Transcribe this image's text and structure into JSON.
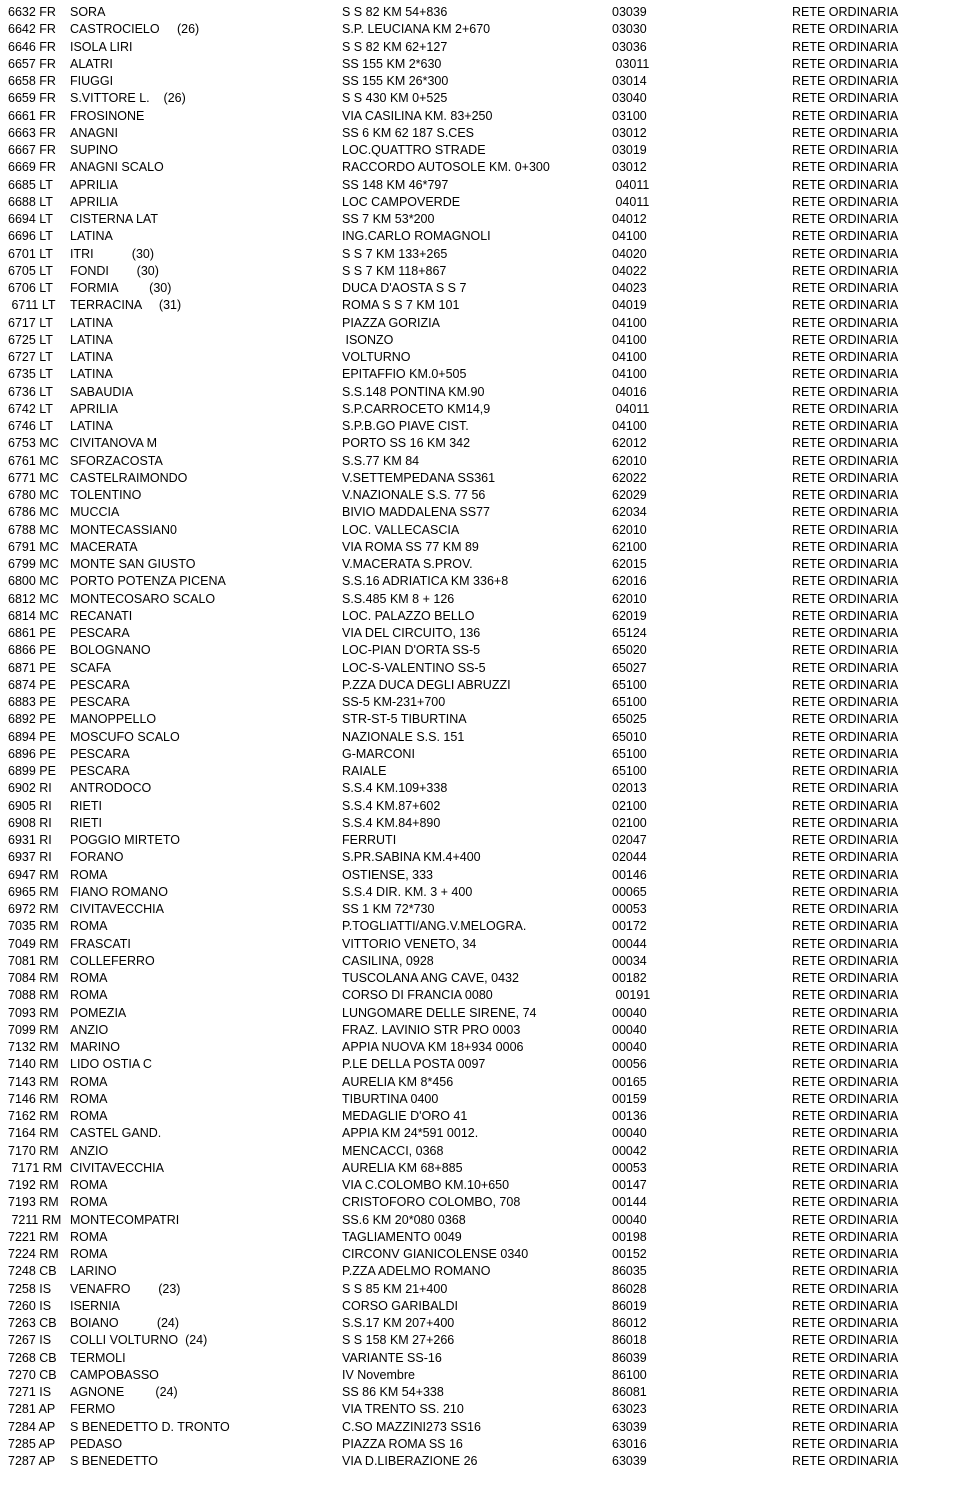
{
  "rows": [
    {
      "code": "6632 FR",
      "city": "SORA",
      "address": "S S 82 KM 54+836",
      "cap": "03039",
      "network": "RETE ORDINARIA"
    },
    {
      "code": "6642 FR",
      "city": "CASTROCIELO     (26)",
      "address": "S.P. LEUCIANA KM 2+670",
      "cap": "03030",
      "network": "RETE ORDINARIA"
    },
    {
      "code": "6646 FR",
      "city": "ISOLA LIRI",
      "address": "S S 82 KM 62+127",
      "cap": "03036",
      "network": "RETE ORDINARIA"
    },
    {
      "code": "6657 FR",
      "city": "ALATRI",
      "address": "SS 155 KM 2*630",
      "cap": " 03011",
      "network": "RETE ORDINARIA"
    },
    {
      "code": "6658 FR",
      "city": "FIUGGI",
      "address": "SS 155 KM 26*300",
      "cap": "03014",
      "network": "RETE ORDINARIA"
    },
    {
      "code": "6659 FR",
      "city": "S.VITTORE L.    (26)",
      "address": "S S 430 KM 0+525",
      "cap": "03040",
      "network": "RETE ORDINARIA"
    },
    {
      "code": "6661 FR",
      "city": "FROSINONE",
      "address": "VIA CASILINA KM. 83+250",
      "cap": "03100",
      "network": "RETE ORDINARIA"
    },
    {
      "code": "6663 FR",
      "city": "ANAGNI",
      "address": "SS 6 KM 62 187 S.CES",
      "cap": "03012",
      "network": "RETE ORDINARIA"
    },
    {
      "code": "6667 FR",
      "city": "SUPINO",
      "address": "LOC.QUATTRO STRADE",
      "cap": "03019",
      "network": "RETE ORDINARIA"
    },
    {
      "code": "6669 FR",
      "city": "ANAGNI SCALO",
      "address": "RACCORDO AUTOSOLE KM. 0+300",
      "cap": "03012",
      "network": "RETE ORDINARIA"
    },
    {
      "code": "6685 LT",
      "city": "APRILIA",
      "address": "SS 148 KM 46*797",
      "cap": " 04011",
      "network": "RETE ORDINARIA"
    },
    {
      "code": "6688 LT",
      "city": "APRILIA",
      "address": "LOC CAMPOVERDE",
      "cap": " 04011",
      "network": "RETE ORDINARIA"
    },
    {
      "code": "6694 LT",
      "city": "CISTERNA LAT",
      "address": "SS 7 KM 53*200",
      "cap": "04012",
      "network": "RETE ORDINARIA"
    },
    {
      "code": "6696 LT",
      "city": "LATINA",
      "address": "ING.CARLO ROMAGNOLI",
      "cap": "04100",
      "network": "RETE ORDINARIA"
    },
    {
      "code": "6701 LT",
      "city": "ITRI           (30)",
      "address": "S S 7 KM 133+265",
      "cap": "04020",
      "network": "RETE ORDINARIA"
    },
    {
      "code": "6705 LT",
      "city": "FONDI        (30)",
      "address": "S S 7 KM 118+867",
      "cap": "04022",
      "network": "RETE ORDINARIA"
    },
    {
      "code": "6706 LT",
      "city": "FORMIA         (30)",
      "address": "DUCA D'AOSTA S S 7",
      "cap": "04023",
      "network": "RETE ORDINARIA"
    },
    {
      "code": " 6711 LT",
      "city": "TERRACINA     (31)",
      "address": "ROMA S S 7 KM 101",
      "cap": "04019",
      "network": "RETE ORDINARIA"
    },
    {
      "code": "6717 LT",
      "city": "LATINA",
      "address": "PIAZZA GORIZIA",
      "cap": "04100",
      "network": "RETE ORDINARIA"
    },
    {
      "code": "6725 LT",
      "city": "LATINA",
      "address": " ISONZO",
      "cap": "04100",
      "network": "RETE ORDINARIA"
    },
    {
      "code": "6727 LT",
      "city": "LATINA",
      "address": "VOLTURNO",
      "cap": "04100",
      "network": "RETE ORDINARIA"
    },
    {
      "code": "6735 LT",
      "city": "LATINA",
      "address": "EPITAFFIO KM.0+505",
      "cap": "04100",
      "network": "RETE ORDINARIA"
    },
    {
      "code": "6736 LT",
      "city": "SABAUDIA",
      "address": "S.S.148 PONTINA KM.90",
      "cap": "04016",
      "network": "RETE ORDINARIA"
    },
    {
      "code": "6742 LT",
      "city": "APRILIA",
      "address": "S.P.CARROCETO KM14,9",
      "cap": " 04011",
      "network": "RETE ORDINARIA"
    },
    {
      "code": "6746 LT",
      "city": "LATINA",
      "address": "S.P.B.GO PIAVE CIST.",
      "cap": "04100",
      "network": "RETE ORDINARIA"
    },
    {
      "code": "6753 MC",
      "city": "CIVITANOVA M",
      "address": "PORTO SS 16 KM 342",
      "cap": "62012",
      "network": "RETE ORDINARIA"
    },
    {
      "code": "6761 MC",
      "city": "SFORZACOSTA",
      "address": "S.S.77 KM 84",
      "cap": "62010",
      "network": "RETE ORDINARIA"
    },
    {
      "code": "6771 MC",
      "city": "CASTELRAIMONDO",
      "address": "V.SETTEMPEDANA SS361",
      "cap": "62022",
      "network": "RETE ORDINARIA"
    },
    {
      "code": "6780 MC",
      "city": "TOLENTINO",
      "address": "V.NAZIONALE S.S. 77 56",
      "cap": "62029",
      "network": "RETE ORDINARIA"
    },
    {
      "code": "6786 MC",
      "city": "MUCCIA",
      "address": "BIVIO MADDALENA SS77",
      "cap": "62034",
      "network": "RETE ORDINARIA"
    },
    {
      "code": "6788 MC",
      "city": "MONTECASSIAN0",
      "address": "LOC. VALLECASCIA",
      "cap": "62010",
      "network": "RETE ORDINARIA"
    },
    {
      "code": "6791 MC",
      "city": "MACERATA",
      "address": "VIA ROMA SS 77 KM 89",
      "cap": "62100",
      "network": "RETE ORDINARIA"
    },
    {
      "code": "6799 MC",
      "city": "MONTE SAN GIUSTO",
      "address": "V.MACERATA S.PROV.",
      "cap": "62015",
      "network": "RETE ORDINARIA"
    },
    {
      "code": "6800 MC",
      "city": "PORTO POTENZA PICENA",
      "address": "S.S.16 ADRIATICA KM 336+8",
      "cap": "62016",
      "network": "RETE ORDINARIA"
    },
    {
      "code": "6812 MC",
      "city": "MONTECOSARO SCALO",
      "address": "S.S.485 KM 8 + 126",
      "cap": "62010",
      "network": "RETE ORDINARIA"
    },
    {
      "code": "6814 MC",
      "city": "RECANATI",
      "address": "LOC. PALAZZO BELLO",
      "cap": "62019",
      "network": "RETE ORDINARIA"
    },
    {
      "code": "6861 PE",
      "city": "PESCARA",
      "address": "VIA DEL CIRCUITO, 136",
      "cap": "65124",
      "network": "RETE ORDINARIA"
    },
    {
      "code": "6866 PE",
      "city": "BOLOGNANO",
      "address": "LOC-PIAN D'ORTA SS-5",
      "cap": "65020",
      "network": "RETE ORDINARIA"
    },
    {
      "code": "6871 PE",
      "city": "SCAFA",
      "address": "LOC-S-VALENTINO SS-5",
      "cap": "65027",
      "network": "RETE ORDINARIA"
    },
    {
      "code": "6874 PE",
      "city": "PESCARA",
      "address": "P.ZZA DUCA DEGLI ABRUZZI",
      "cap": "65100",
      "network": "RETE ORDINARIA"
    },
    {
      "code": "6883 PE",
      "city": "PESCARA",
      "address": "SS-5 KM-231+700",
      "cap": "65100",
      "network": "RETE ORDINARIA"
    },
    {
      "code": "6892 PE",
      "city": "MANOPPELLO",
      "address": "STR-ST-5 TIBURTINA",
      "cap": "65025",
      "network": "RETE ORDINARIA"
    },
    {
      "code": "6894 PE",
      "city": "MOSCUFO SCALO",
      "address": "NAZIONALE S.S. 151",
      "cap": "65010",
      "network": "RETE ORDINARIA"
    },
    {
      "code": "6896 PE",
      "city": "PESCARA",
      "address": "G-MARCONI",
      "cap": "65100",
      "network": "RETE ORDINARIA"
    },
    {
      "code": "6899 PE",
      "city": "PESCARA",
      "address": "RAIALE",
      "cap": "65100",
      "network": "RETE ORDINARIA"
    },
    {
      "code": "6902 RI",
      "city": "ANTRODOCO",
      "address": "S.S.4 KM.109+338",
      "cap": "02013",
      "network": "RETE ORDINARIA"
    },
    {
      "code": "6905 RI",
      "city": "RIETI",
      "address": "S.S.4 KM.87+602",
      "cap": "02100",
      "network": "RETE ORDINARIA"
    },
    {
      "code": "6908 RI",
      "city": "RIETI",
      "address": "S.S.4 KM.84+890",
      "cap": "02100",
      "network": "RETE ORDINARIA"
    },
    {
      "code": "6931 RI",
      "city": "POGGIO MIRTETO",
      "address": "FERRUTI",
      "cap": "02047",
      "network": "RETE ORDINARIA"
    },
    {
      "code": "6937 RI",
      "city": "FORANO",
      "address": "S.PR.SABINA KM.4+400",
      "cap": "02044",
      "network": "RETE ORDINARIA"
    },
    {
      "code": "6947 RM",
      "city": "ROMA",
      "address": "OSTIENSE, 333",
      "cap": "00146",
      "network": "RETE ORDINARIA"
    },
    {
      "code": "6965 RM",
      "city": "FIANO ROMANO",
      "address": "S.S.4 DIR. KM. 3 + 400",
      "cap": "00065",
      "network": "RETE ORDINARIA"
    },
    {
      "code": "6972 RM",
      "city": "CIVITAVECCHIA",
      "address": "SS 1 KM 72*730",
      "cap": "00053",
      "network": "RETE ORDINARIA"
    },
    {
      "code": "7035 RM",
      "city": "ROMA",
      "address": "P.TOGLIATTI/ANG.V.MELOGRA.",
      "cap": "00172",
      "network": "RETE ORDINARIA"
    },
    {
      "code": "7049 RM",
      "city": "FRASCATI",
      "address": "VITTORIO VENETO, 34",
      "cap": "00044",
      "network": "RETE ORDINARIA"
    },
    {
      "code": "7081 RM",
      "city": "COLLEFERRO",
      "address": "CASILINA, 0928",
      "cap": "00034",
      "network": "RETE ORDINARIA"
    },
    {
      "code": "7084 RM",
      "city": "ROMA",
      "address": "TUSCOLANA ANG CAVE, 0432",
      "cap": "00182",
      "network": "RETE ORDINARIA"
    },
    {
      "code": "7088 RM",
      "city": "ROMA",
      "address": "CORSO DI FRANCIA 0080",
      "cap": " 00191",
      "network": "RETE ORDINARIA"
    },
    {
      "code": "7093 RM",
      "city": "POMEZIA",
      "address": "LUNGOMARE DELLE SIRENE, 74",
      "cap": "00040",
      "network": "RETE ORDINARIA"
    },
    {
      "code": "7099 RM",
      "city": "ANZIO",
      "address": "FRAZ. LAVINIO STR PRO 0003",
      "cap": "00040",
      "network": "RETE ORDINARIA"
    },
    {
      "code": "7132 RM",
      "city": "MARINO",
      "address": "APPIA NUOVA KM 18+934 0006",
      "cap": "00040",
      "network": "RETE ORDINARIA"
    },
    {
      "code": "7140 RM",
      "city": "LIDO OSTIA C",
      "address": "P.LE DELLA POSTA 0097",
      "cap": "00056",
      "network": "RETE ORDINARIA"
    },
    {
      "code": "7143 RM",
      "city": "ROMA",
      "address": "AURELIA KM 8*456",
      "cap": "00165",
      "network": "RETE ORDINARIA"
    },
    {
      "code": "7146 RM",
      "city": "ROMA",
      "address": "TIBURTINA 0400",
      "cap": "00159",
      "network": "RETE ORDINARIA"
    },
    {
      "code": "7162 RM",
      "city": "ROMA",
      "address": "MEDAGLIE D'ORO 41",
      "cap": "00136",
      "network": "RETE ORDINARIA"
    },
    {
      "code": "7164 RM",
      "city": "CASTEL GAND.",
      "address": "APPIA KM 24*591 0012.",
      "cap": "00040",
      "network": "RETE ORDINARIA"
    },
    {
      "code": "7170 RM",
      "city": "ANZIO",
      "address": "MENCACCI, 0368",
      "cap": "00042",
      "network": "RETE ORDINARIA"
    },
    {
      "code": " 7171 RM",
      "city": "CIVITAVECCHIA",
      "address": "AURELIA KM 68+885",
      "cap": "00053",
      "network": "RETE ORDINARIA"
    },
    {
      "code": "7192 RM",
      "city": "ROMA",
      "address": "VIA C.COLOMBO KM.10+650",
      "cap": "00147",
      "network": "RETE ORDINARIA"
    },
    {
      "code": "7193 RM",
      "city": "ROMA",
      "address": "CRISTOFORO COLOMBO, 708",
      "cap": "00144",
      "network": "RETE ORDINARIA"
    },
    {
      "code": " 7211 RM",
      "city": "MONTECOMPATRI",
      "address": "SS.6 KM 20*080 0368",
      "cap": "00040",
      "network": "RETE ORDINARIA"
    },
    {
      "code": "7221 RM",
      "city": "ROMA",
      "address": "TAGLIAMENTO 0049",
      "cap": "00198",
      "network": "RETE ORDINARIA"
    },
    {
      "code": "7224 RM",
      "city": "ROMA",
      "address": "CIRCONV GIANICOLENSE 0340",
      "cap": "00152",
      "network": "RETE ORDINARIA"
    },
    {
      "code": "7248 CB",
      "city": "LARINO",
      "address": "P.ZZA ADELMO ROMANO",
      "cap": "86035",
      "network": "RETE ORDINARIA"
    },
    {
      "code": "7258 IS",
      "city": "VENAFRO        (23)",
      "address": "S S 85 KM 21+400",
      "cap": "86028",
      "network": "RETE ORDINARIA"
    },
    {
      "code": "7260 IS",
      "city": "ISERNIA",
      "address": "CORSO GARIBALDI",
      "cap": "86019",
      "network": "RETE ORDINARIA"
    },
    {
      "code": "7263 CB",
      "city": "BOIANO           (24)",
      "address": "S.S.17 KM 207+400",
      "cap": "86012",
      "network": "RETE ORDINARIA"
    },
    {
      "code": "7267 IS",
      "city": "COLLI VOLTURNO  (24)",
      "address": "S S 158 KM 27+266",
      "cap": "86018",
      "network": "RETE ORDINARIA"
    },
    {
      "code": "7268 CB",
      "city": "TERMOLI",
      "address": "VARIANTE SS-16",
      "cap": "86039",
      "network": "RETE ORDINARIA"
    },
    {
      "code": "7270 CB",
      "city": "CAMPOBASSO",
      "address": "IV Novembre",
      "cap": "86100",
      "network": "RETE ORDINARIA"
    },
    {
      "code": "7271 IS",
      "city": "AGNONE         (24)",
      "address": "SS 86 KM 54+338",
      "cap": "86081",
      "network": "RETE ORDINARIA"
    },
    {
      "code": "7281 AP",
      "city": "FERMO",
      "address": "VIA TRENTO SS. 210",
      "cap": "63023",
      "network": "RETE ORDINARIA"
    },
    {
      "code": "7284 AP",
      "city": "S BENEDETTO D. TRONTO",
      "address": "C.SO MAZZINI273 SS16",
      "cap": "63039",
      "network": "RETE ORDINARIA"
    },
    {
      "code": "7285 AP",
      "city": "PEDASO",
      "address": "PIAZZA ROMA SS 16",
      "cap": "63016",
      "network": "RETE ORDINARIA"
    },
    {
      "code": "7287 AP",
      "city": "S BENEDETTO",
      "address": "VIA D.LIBERAZIONE 26",
      "cap": "63039",
      "network": "RETE ORDINARIA"
    }
  ]
}
